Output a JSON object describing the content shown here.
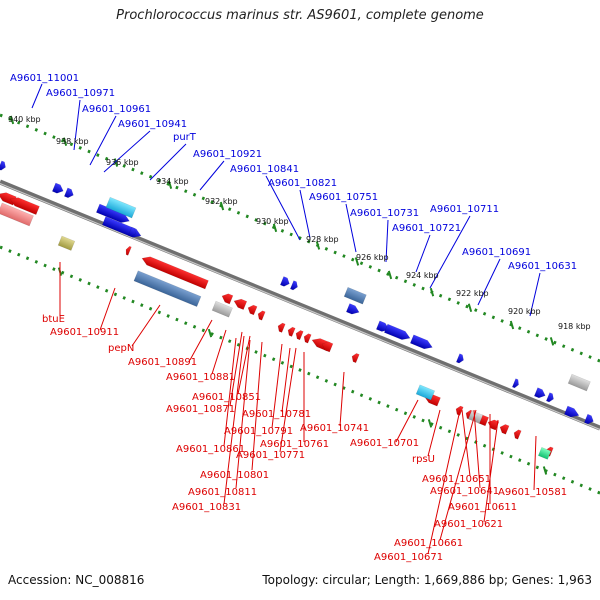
{
  "title": "Prochlorococcus marinus str. AS9601, complete genome",
  "footer": {
    "accession": "Accession: NC_008816",
    "stats": "Topology: circular; Length: 1,669,886 bp; Genes: 1,963"
  },
  "colors": {
    "forward_strand": "#0000dd",
    "reverse_strand": "#dd0000",
    "backbone": "#707070",
    "ticks": "#228822"
  },
  "tick_labels": [
    "940 kbp",
    "938 kbp",
    "936 kbp",
    "934 kbp",
    "932 kbp",
    "930 kbp",
    "928 kbp",
    "926 kbp",
    "924 kbp",
    "922 kbp",
    "920 kbp",
    "918 kbp"
  ],
  "forward_labels": [
    "A9601_11001",
    "A9601_10971",
    "A9601_10961",
    "A9601_10941",
    "purT",
    "A9601_10921",
    "A9601_10841",
    "A9601_10821",
    "A9601_10751",
    "A9601_10731",
    "A9601_10711",
    "A9601_10721",
    "A9601_10691",
    "A9601_10631"
  ],
  "reverse_labels": [
    "btuE",
    "A9601_10911",
    "pepN",
    "A9601_10891",
    "A9601_10881",
    "A9601_10851",
    "A9601_10871",
    "A9601_10781",
    "A9601_10791",
    "A9601_10861",
    "A9601_10761",
    "A9601_10741",
    "A9601_10771",
    "A9601_10701",
    "A9601_10801",
    "A9601_10811",
    "A9601_10831",
    "rpsU",
    "A9601_10651",
    "A9601_10641",
    "A9601_10581",
    "A9601_10611",
    "A9601_10621",
    "A9601_10661",
    "A9601_10671"
  ]
}
